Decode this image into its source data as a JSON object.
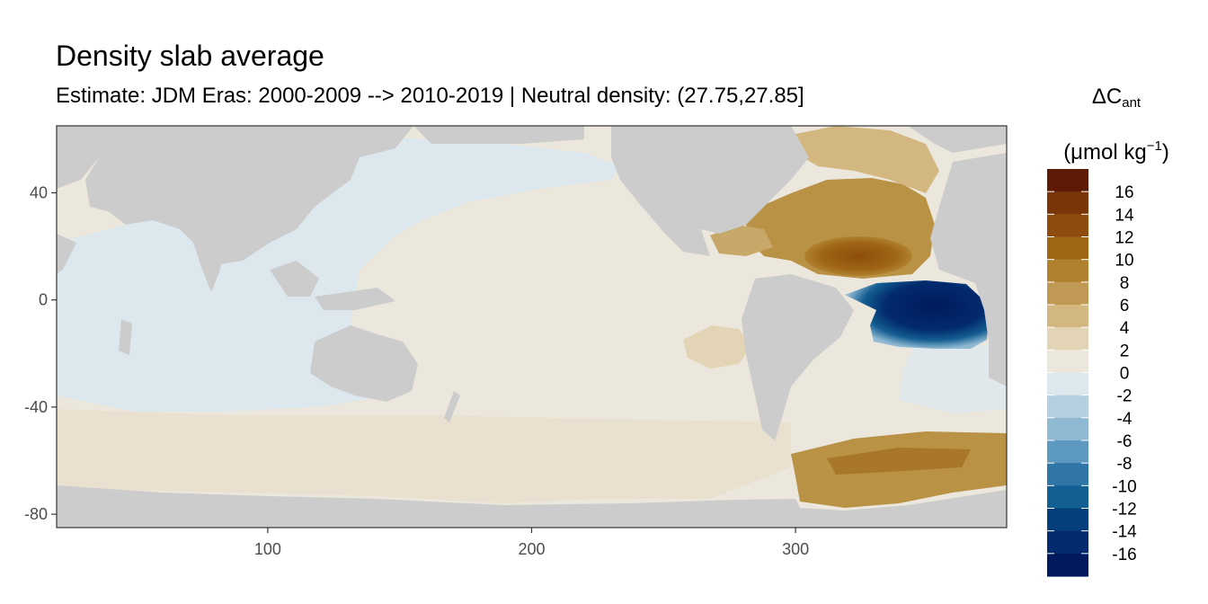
{
  "chart_data": {
    "type": "heatmap",
    "title": "Density slab average",
    "subtitle": "Estimate: JDM Eras: 2000-2009 --> 2010-2019 | Neutral density: (27.75,27.85]",
    "xlabel": "",
    "ylabel": "",
    "xlim": [
      20,
      380
    ],
    "ylim": [
      -85,
      65
    ],
    "x_ticks": [
      100,
      200,
      300
    ],
    "y_ticks": [
      40,
      0,
      -40,
      -80
    ],
    "legend": {
      "title_symbol": "ΔC",
      "title_subscript": "ant",
      "unit_open": "(μmol kg",
      "unit_superscript": "−1",
      "unit_close": ")",
      "labels": [
        "16",
        "14",
        "12",
        "10",
        "8",
        "6",
        "4",
        "2",
        "0",
        "-2",
        "-4",
        "-6",
        "-8",
        "-10",
        "-12",
        "-14",
        "-16"
      ],
      "colors": [
        "#5e1a04",
        "#7a3609",
        "#8e4d0c",
        "#9e6615",
        "#b08230",
        "#c09a55",
        "#d3b780",
        "#e3d4b5",
        "#ece7dd",
        "#dde8ee",
        "#b4cfdf",
        "#8fb9d2",
        "#5d98bf",
        "#2f76a7",
        "#135e92",
        "#053f7b",
        "#022a6d",
        "#001a5e"
      ]
    },
    "regions": [
      {
        "name": "Indian and Pacific Ocean",
        "value": -1
      },
      {
        "name": "Southern Ocean Pacific sector",
        "value": 1
      },
      {
        "name": "Eastern Pacific",
        "value": 1
      },
      {
        "name": "North Atlantic",
        "value": 9
      },
      {
        "name": "Subtropical North Atlantic core",
        "value": 13
      },
      {
        "name": "Labrador Sea",
        "value": 5
      },
      {
        "name": "Tropical Atlantic",
        "value": -16
      },
      {
        "name": "South Atlantic",
        "value": -1
      },
      {
        "name": "Weddell Sea sector",
        "value": 9
      }
    ],
    "colors": {
      "land": "#cccccc",
      "frame": "#333333",
      "background": "#ffffff"
    }
  }
}
